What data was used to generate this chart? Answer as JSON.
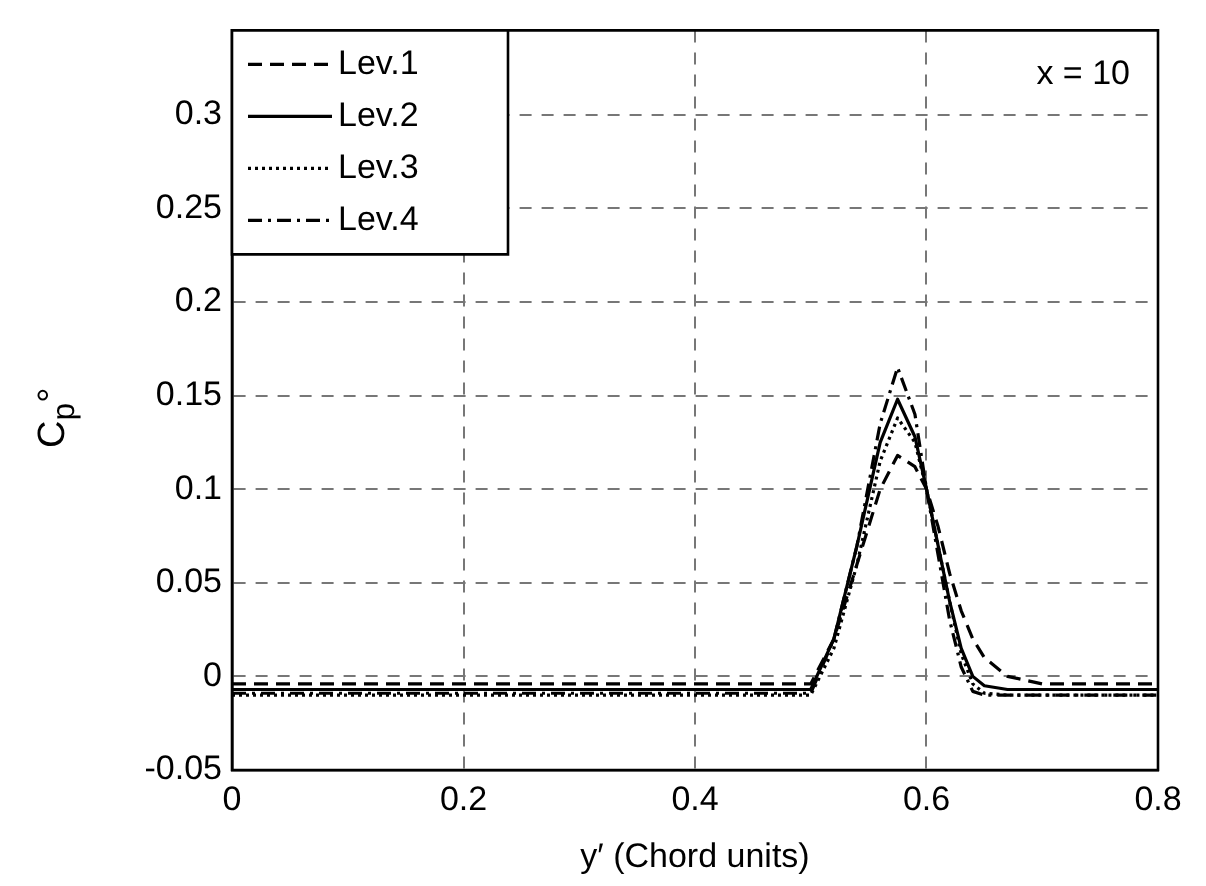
{
  "chart_data": {
    "type": "line",
    "xlabel": "y′ (Chord units)",
    "ylabel": "C$_{p}$°",
    "annotations": [
      "x = 10"
    ],
    "x": [
      0,
      0.5,
      0.52,
      0.54,
      0.56,
      0.575,
      0.59,
      0.6,
      0.61,
      0.62,
      0.63,
      0.64,
      0.65,
      0.67,
      0.7,
      0.8
    ],
    "series": [
      {
        "name": "Lev.1",
        "color": "#000000",
        "line_style": "dashed",
        "values": [
          -0.004,
          -0.004,
          0.02,
          0.06,
          0.1,
          0.118,
          0.112,
          0.1,
          0.08,
          0.055,
          0.035,
          0.02,
          0.01,
          0.0,
          -0.004,
          -0.004
        ]
      },
      {
        "name": "Lev.2",
        "color": "#000000",
        "line_style": "solid",
        "values": [
          -0.007,
          -0.007,
          0.02,
          0.07,
          0.125,
          0.148,
          0.128,
          0.1,
          0.07,
          0.04,
          0.015,
          0.0,
          -0.005,
          -0.007,
          -0.007,
          -0.007
        ]
      },
      {
        "name": "Lev.3",
        "color": "#000000",
        "line_style": "dotted",
        "values": [
          -0.01,
          -0.01,
          0.015,
          0.06,
          0.115,
          0.138,
          0.125,
          0.1,
          0.07,
          0.04,
          0.012,
          -0.004,
          -0.009,
          -0.01,
          -0.01,
          -0.01
        ]
      },
      {
        "name": "Lev.4",
        "color": "#000000",
        "line_style": "dashdot",
        "values": [
          -0.009,
          -0.009,
          0.02,
          0.07,
          0.135,
          0.165,
          0.14,
          0.1,
          0.065,
          0.03,
          0.005,
          -0.008,
          -0.01,
          -0.01,
          -0.01,
          -0.01
        ]
      }
    ],
    "xlim": [
      0,
      0.8
    ],
    "xticks": [
      0,
      0.2,
      0.4,
      0.6,
      0.8
    ],
    "ylim": [
      -0.05,
      0.345
    ],
    "yticks": [
      -0.05,
      0,
      0.05,
      0.1,
      0.15,
      0.2,
      0.25,
      0.3
    ],
    "grid": true,
    "legend": "top left",
    "marker": "none"
  }
}
